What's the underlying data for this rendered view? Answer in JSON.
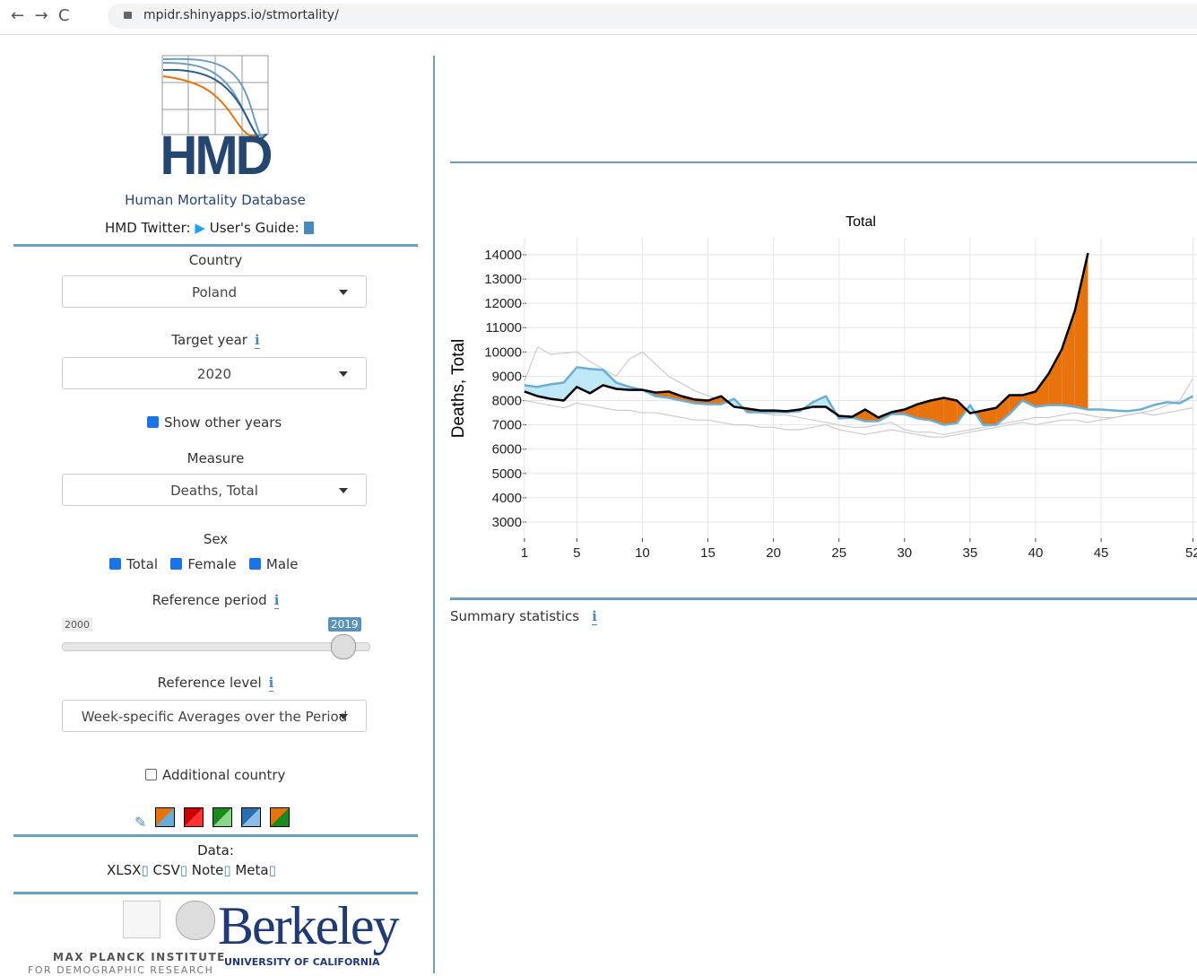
{
  "browser": {
    "url": "mpidr.shinyapps.io/stmortality/"
  },
  "sidebar": {
    "logo_text": "HMD",
    "logo_caption": "Human Mortality Database",
    "twitter": "HMD Twitter:",
    "guide": "User's Guide:",
    "country": {
      "label": "Country",
      "value": "Poland"
    },
    "target_year": {
      "label": "Target year",
      "value": "2020"
    },
    "show_other_years": "Show other years",
    "measure": {
      "label": "Measure",
      "value": "Deaths, Total"
    },
    "sex": {
      "label": "Sex",
      "options": [
        "Total",
        "Female",
        "Male"
      ]
    },
    "reference_period": {
      "label": "Reference period",
      "min": "2000",
      "max": "2019"
    },
    "reference_level": {
      "label": "Reference level",
      "value": "Week-specific Averages over the Period"
    },
    "additional_country": "Additional country",
    "data": {
      "label": "Data:",
      "links": [
        "XLSX",
        "CSV",
        "Note",
        "Meta"
      ]
    },
    "footer": {
      "mpi": "MAX PLANCK INSTITUTE",
      "mpi_sub": "FOR DEMOGRAPHIC RESEARCH",
      "berkeley": "Berkeley",
      "uc": "UNIVERSITY OF CALIFORNIA"
    }
  },
  "info_icon": "i",
  "summary": "Summary statistics",
  "chart_data": {
    "type": "line",
    "title": "Total",
    "y_label": "Deaths, Total",
    "x": [
      1,
      2,
      3,
      4,
      5,
      6,
      7,
      8,
      9,
      10,
      11,
      12,
      13,
      14,
      15,
      16,
      17,
      18,
      19,
      20,
      21,
      22,
      23,
      24,
      25,
      26,
      27,
      28,
      29,
      30,
      31,
      32,
      33,
      34,
      35,
      36,
      37,
      38,
      39,
      40,
      41,
      42,
      43,
      44,
      45,
      46,
      47,
      48,
      49,
      50,
      51,
      52
    ],
    "series": [
      {
        "color": "#000000",
        "values": [
          8370,
          8180,
          8070,
          8000,
          8560,
          8300,
          8630,
          8480,
          8440,
          8440,
          8330,
          8370,
          8180,
          8040,
          8000,
          8180,
          7740,
          7670,
          7590,
          7590,
          7560,
          7630,
          7740,
          7740,
          7370,
          7330,
          7630,
          7300,
          7520,
          7630,
          7850,
          8000,
          8110,
          8000,
          7480,
          7590,
          7700,
          8220,
          8220,
          8370,
          9110,
          10110,
          11700,
          14070,
          null,
          null,
          null,
          null,
          null,
          null,
          null,
          null
        ]
      },
      {
        "color": "#6aaed6",
        "values": [
          8630,
          8560,
          8670,
          8740,
          9370,
          9300,
          9260,
          8740,
          8560,
          8440,
          8180,
          8110,
          8000,
          7890,
          7850,
          7850,
          8070,
          7520,
          7520,
          7520,
          7520,
          7560,
          7930,
          8180,
          7260,
          7300,
          7150,
          7150,
          7440,
          7440,
          7260,
          7190,
          7000,
          7070,
          7810,
          7000,
          7000,
          7440,
          8000,
          7740,
          7810,
          7810,
          7740,
          7630,
          7630,
          7590,
          7560,
          7630,
          7810,
          7930,
          7890,
          8180
        ]
      },
      {
        "color": "#cccccc",
        "values": [
          8800,
          10200,
          9900,
          9950,
          10000,
          9600,
          9300,
          9000,
          9700,
          10000,
          9500,
          9000,
          8700,
          8400,
          8200,
          8000,
          7800,
          7700,
          7500,
          7400,
          7400,
          7300,
          7200,
          7100,
          7000,
          6900,
          6900,
          7000,
          7100,
          6800,
          6700,
          6700,
          6600,
          6700,
          6800,
          6900,
          7000,
          7100,
          7200,
          7300,
          7300,
          7400,
          7500,
          7400,
          7300,
          7300,
          7400,
          7500,
          7600,
          7800,
          8000,
          8900
        ]
      },
      {
        "color": "#cccccc",
        "values": [
          8000,
          7900,
          7800,
          7700,
          7900,
          7800,
          7700,
          7600,
          7600,
          7500,
          7500,
          7400,
          7300,
          7200,
          7200,
          7100,
          7000,
          7000,
          6900,
          6900,
          6800,
          6800,
          6900,
          7000,
          6800,
          6700,
          6600,
          6700,
          6800,
          6700,
          6600,
          6500,
          6500,
          6600,
          6700,
          6800,
          6900,
          7000,
          7100,
          7000,
          7100,
          7200,
          7200,
          7100,
          7200,
          7300,
          7400,
          7500,
          7400,
          7500,
          7600,
          7700
        ]
      }
    ],
    "fill_above": "#e8720c",
    "fill_below": "#bfe8f6",
    "xlim": [
      -0.36,
      53
    ],
    "xticks": [
      1,
      5,
      10,
      15,
      20,
      25,
      30,
      35,
      40,
      45,
      52
    ],
    "ylim": [
      2260,
      14700
    ],
    "yticks": [
      3000,
      4000,
      5000,
      6000,
      7000,
      8000,
      9000,
      10000,
      11000,
      12000,
      13000,
      14000
    ],
    "grid": true
  }
}
